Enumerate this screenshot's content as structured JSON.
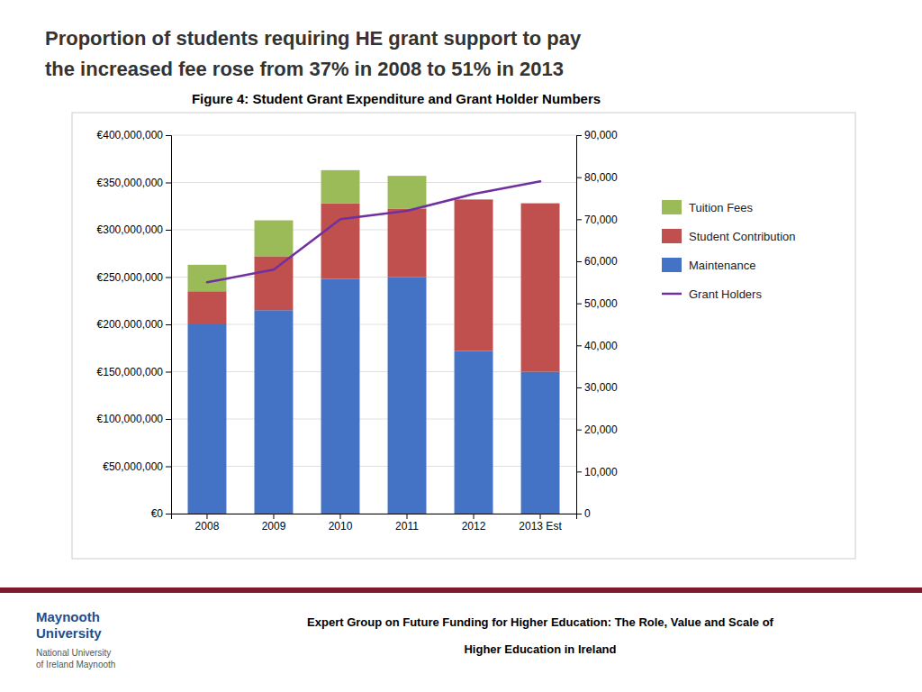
{
  "chart_data": {
    "type": "bar",
    "stacked": true,
    "title": [
      "Proportion of students requiring HE grant support to pay",
      "the increased fee rose from 37% in 2008 to 51% in 2013"
    ],
    "subtitle": "Figure 4:  Student Grant Expenditure and Grant Holder Numbers",
    "categories": [
      "2008",
      "2009",
      "2010",
      "2011",
      "2012",
      "2013 Est"
    ],
    "series": [
      {
        "name": "Maintenance",
        "type": "bar",
        "color": "#4472C4",
        "values": [
          200000000,
          215000000,
          248000000,
          250000000,
          172000000,
          150000000
        ]
      },
      {
        "name": "Student Contribution",
        "type": "bar",
        "color": "#C0504D",
        "values": [
          35000000,
          57000000,
          80000000,
          72000000,
          160000000,
          178000000
        ]
      },
      {
        "name": "Tuition Fees",
        "type": "bar",
        "color": "#9BBB59",
        "values": [
          28000000,
          38000000,
          35000000,
          35000000,
          0,
          0
        ]
      },
      {
        "name": "Grant Holders",
        "type": "line",
        "axis": "y2",
        "color": "#7030A0",
        "values": [
          55000,
          58000,
          70000,
          72000,
          76000,
          79000
        ]
      }
    ],
    "ylim": [
      0,
      400000000
    ],
    "yticks": [
      {
        "value": 0,
        "label": "€0"
      },
      {
        "value": 50000000,
        "label": "€50,000,000"
      },
      {
        "value": 100000000,
        "label": "€100,000,000"
      },
      {
        "value": 150000000,
        "label": "€150,000,000"
      },
      {
        "value": 200000000,
        "label": "€200,000,000"
      },
      {
        "value": 250000000,
        "label": "€250,000,000"
      },
      {
        "value": 300000000,
        "label": "€300,000,000"
      },
      {
        "value": 350000000,
        "label": "€350,000,000"
      },
      {
        "value": 400000000,
        "label": "€400,000,000"
      }
    ],
    "y2lim": [
      0,
      90000
    ],
    "y2ticks": [
      0,
      {
        "value": 10000,
        "label": "10,000"
      },
      {
        "value": 20000,
        "label": "20,000"
      },
      {
        "value": 30000,
        "label": "30,000"
      },
      {
        "value": 40000,
        "label": "40,000"
      },
      {
        "value": 50000,
        "label": "50,000"
      },
      {
        "value": 60000,
        "label": "60,000"
      },
      {
        "value": 70000,
        "label": "70,000"
      },
      {
        "value": 80000,
        "label": "80,000"
      },
      {
        "value": 90000,
        "label": "90,000"
      }
    ],
    "grid": true,
    "legend": "right",
    "annotations": [
      "Maynooth",
      "University",
      "National University",
      "of Ireland Maynooth",
      "Expert Group on Future Funding for Higher Education: The Role, Value and Scale of",
      "Higher Education in Ireland"
    ]
  }
}
